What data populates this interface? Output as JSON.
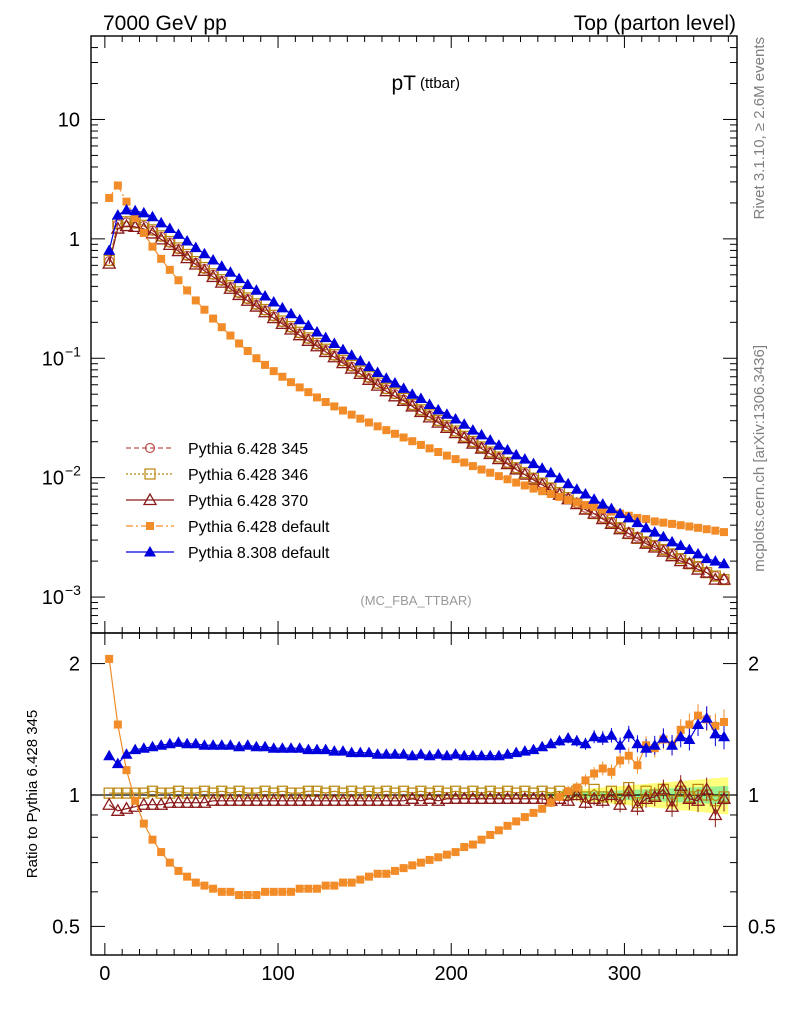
{
  "header": {
    "left": "7000 GeV pp",
    "right": "Top (parton level)"
  },
  "side_labels": {
    "rivet": "Rivet 3.1.10, ≥ 2.6M events",
    "mcplots": "mcplots.cern.ch [arXiv:1306.3436]"
  },
  "chart_data": [
    {
      "type": "line",
      "title": "pT",
      "title_suffix": "(ttbar)",
      "analysis_tag": "(MC_FBA_TTBAR)",
      "y_scale": "log",
      "xlim": [
        -8,
        365
      ],
      "ylim": [
        0.0005,
        50
      ],
      "y_ticks": [
        {
          "value": 10,
          "label": "10",
          "exp": ""
        },
        {
          "value": 1,
          "label": "1",
          "exp": ""
        },
        {
          "value": 0.1,
          "label": "10",
          "exp": "−1"
        },
        {
          "value": 0.01,
          "label": "10",
          "exp": "−2"
        },
        {
          "value": 0.001,
          "label": "10",
          "exp": "−3"
        }
      ],
      "legend_position": "lower-left",
      "x": [
        2.5,
        7.5,
        12.5,
        17.5,
        22.5,
        27.5,
        32.5,
        37.5,
        42.5,
        47.5,
        52.5,
        57.5,
        62.5,
        67.5,
        72.5,
        77.5,
        82.5,
        87.5,
        92.5,
        97.5,
        102.5,
        107.5,
        112.5,
        117.5,
        122.5,
        127.5,
        132.5,
        137.5,
        142.5,
        147.5,
        152.5,
        157.5,
        162.5,
        167.5,
        172.5,
        177.5,
        182.5,
        187.5,
        192.5,
        197.5,
        202.5,
        207.5,
        212.5,
        217.5,
        222.5,
        227.5,
        232.5,
        237.5,
        242.5,
        247.5,
        252.5,
        257.5,
        262.5,
        267.5,
        272.5,
        277.5,
        282.5,
        287.5,
        292.5,
        297.5,
        302.5,
        307.5,
        312.5,
        317.5,
        322.5,
        327.5,
        332.5,
        337.5,
        342.5,
        347.5,
        352.5,
        357.5
      ],
      "series": [
        {
          "name": "Pythia 6.428 345",
          "color": "#c0504d",
          "marker": "open-circle",
          "line": "dashed",
          "values": [
            0.65,
            1.32,
            1.37,
            1.34,
            1.28,
            1.17,
            1.04,
            0.93,
            0.82,
            0.72,
            0.63,
            0.56,
            0.5,
            0.445,
            0.395,
            0.35,
            0.313,
            0.28,
            0.251,
            0.224,
            0.2,
            0.18,
            0.161,
            0.145,
            0.13,
            0.117,
            0.105,
            0.094,
            0.085,
            0.076,
            0.068,
            0.061,
            0.055,
            0.05,
            0.045,
            0.0405,
            0.0365,
            0.033,
            0.0297,
            0.0268,
            0.0242,
            0.0219,
            0.0198,
            0.0179,
            0.0162,
            0.0147,
            0.0133,
            0.012,
            0.0109,
            0.0099,
            0.009,
            0.0082,
            0.0074,
            0.0067,
            0.0061,
            0.0056,
            0.0051,
            0.0046,
            0.0042,
            0.0038,
            0.0035,
            0.0032,
            0.0029,
            0.0027,
            0.0025,
            0.0023,
            0.0021,
            0.0019,
            0.0018,
            0.0016,
            0.0015,
            0.0014
          ]
        },
        {
          "name": "Pythia 6.428 346",
          "color": "#b8860b",
          "marker": "open-square",
          "line": "dotted",
          "values": [
            0.66,
            1.34,
            1.39,
            1.36,
            1.3,
            1.19,
            1.06,
            0.95,
            0.84,
            0.74,
            0.645,
            0.575,
            0.51,
            0.455,
            0.405,
            0.36,
            0.32,
            0.286,
            0.256,
            0.229,
            0.205,
            0.184,
            0.165,
            0.148,
            0.133,
            0.119,
            0.107,
            0.096,
            0.087,
            0.078,
            0.07,
            0.062,
            0.056,
            0.051,
            0.046,
            0.041,
            0.037,
            0.0336,
            0.0302,
            0.0272,
            0.0246,
            0.0222,
            0.0201,
            0.0181,
            0.0164,
            0.0149,
            0.0134,
            0.0121,
            0.011,
            0.0099,
            0.009,
            0.0082,
            0.0075,
            0.0068,
            0.0061,
            0.0055,
            0.005,
            0.0046,
            0.0042,
            0.0038,
            0.0034,
            0.0031,
            0.0029,
            0.0027,
            0.0025,
            0.0023,
            0.0021,
            0.0019,
            0.0018,
            0.0016,
            0.0015,
            0.0014
          ]
        },
        {
          "name": "Pythia 6.428 370",
          "color": "#8b1a1a",
          "marker": "open-triangle",
          "line": "solid",
          "values": [
            0.62,
            1.22,
            1.28,
            1.26,
            1.21,
            1.11,
            0.99,
            0.89,
            0.79,
            0.69,
            0.61,
            0.54,
            0.48,
            0.43,
            0.382,
            0.339,
            0.303,
            0.271,
            0.243,
            0.217,
            0.194,
            0.174,
            0.156,
            0.14,
            0.126,
            0.113,
            0.102,
            0.091,
            0.082,
            0.074,
            0.066,
            0.059,
            0.053,
            0.048,
            0.044,
            0.0395,
            0.0355,
            0.032,
            0.0289,
            0.0261,
            0.0236,
            0.0214,
            0.0193,
            0.0175,
            0.0158,
            0.0143,
            0.013,
            0.0117,
            0.0106,
            0.0096,
            0.0087,
            0.0079,
            0.0072,
            0.0066,
            0.006,
            0.0054,
            0.005,
            0.0045,
            0.0041,
            0.0037,
            0.0034,
            0.0031,
            0.0028,
            0.0026,
            0.0024,
            0.0022,
            0.002,
            0.0019,
            0.0017,
            0.0016,
            0.0014,
            0.0014
          ]
        },
        {
          "name": "Pythia 6.428 default",
          "color": "#f28c28",
          "marker": "filled-square",
          "line": "dashdot",
          "values": [
            2.2,
            2.8,
            2.05,
            1.5,
            1.12,
            0.86,
            0.68,
            0.55,
            0.45,
            0.37,
            0.305,
            0.255,
            0.215,
            0.182,
            0.155,
            0.133,
            0.115,
            0.1,
            0.088,
            0.078,
            0.07,
            0.063,
            0.057,
            0.052,
            0.047,
            0.043,
            0.0395,
            0.0365,
            0.0337,
            0.0312,
            0.029,
            0.0269,
            0.025,
            0.0233,
            0.0217,
            0.0202,
            0.0188,
            0.0176,
            0.0164,
            0.0153,
            0.0143,
            0.0134,
            0.0125,
            0.0117,
            0.011,
            0.0103,
            0.0097,
            0.0091,
            0.0086,
            0.0081,
            0.0077,
            0.0073,
            0.0069,
            0.0065,
            0.0062,
            0.0059,
            0.0057,
            0.0054,
            0.0052,
            0.005,
            0.0048,
            0.0046,
            0.0045,
            0.0043,
            0.0042,
            0.0041,
            0.004,
            0.0039,
            0.0038,
            0.0037,
            0.0036,
            0.0035
          ]
        },
        {
          "name": "Pythia 8.308 default",
          "color": "#0000dd",
          "marker": "filled-triangle",
          "line": "solid",
          "values": [
            0.8,
            1.58,
            1.75,
            1.72,
            1.65,
            1.53,
            1.36,
            1.22,
            1.09,
            0.96,
            0.845,
            0.75,
            0.665,
            0.59,
            0.525,
            0.465,
            0.415,
            0.371,
            0.332,
            0.296,
            0.264,
            0.236,
            0.21,
            0.188,
            0.166,
            0.149,
            0.133,
            0.118,
            0.106,
            0.095,
            0.085,
            0.076,
            0.068,
            0.062,
            0.056,
            0.05,
            0.046,
            0.041,
            0.037,
            0.034,
            0.031,
            0.028,
            0.025,
            0.0228,
            0.0206,
            0.0187,
            0.0171,
            0.0155,
            0.0143,
            0.0131,
            0.012,
            0.011,
            0.0099,
            0.0089,
            0.008,
            0.0073,
            0.0066,
            0.006,
            0.0055,
            0.005,
            0.0046,
            0.0042,
            0.0038,
            0.0035,
            0.0032,
            0.0029,
            0.0027,
            0.0025,
            0.0023,
            0.0021,
            0.002,
            0.0019
          ]
        }
      ]
    },
    {
      "type": "line",
      "ylabel": "Ratio to Pythia 6.428 345",
      "y_scale": "log",
      "xlim": [
        -8,
        365
      ],
      "ylim": [
        0.43,
        2.35
      ],
      "y_ticks": [
        {
          "value": 2,
          "label": "2"
        },
        {
          "value": 1,
          "label": "1"
        },
        {
          "value": 0.5,
          "label": "0.5"
        }
      ],
      "x_ticks": [
        0,
        100,
        200,
        300
      ],
      "x_tick_labels": [
        "0",
        "100",
        "200",
        "300"
      ],
      "band": {
        "start_x": 255,
        "inner_color": "#90ee90",
        "outer_color": "#ffff66"
      },
      "series": [
        {
          "name": "Pythia 6.428 346",
          "color": "#b8860b",
          "marker": "open-square",
          "values": [
            1.01,
            1.01,
            1.01,
            1.01,
            1.01,
            1.02,
            1.01,
            1.01,
            1.02,
            1.01,
            1.01,
            1.02,
            1.01,
            1.02,
            1.01,
            1.02,
            1.01,
            1.01,
            1.02,
            1.01,
            1.02,
            1.01,
            1.01,
            1.02,
            1.02,
            1.01,
            1.02,
            1.01,
            1.02,
            1.01,
            1.02,
            1.01,
            1.02,
            1.01,
            1.02,
            1.01,
            1.02,
            1.01,
            1.02,
            1.01,
            1.02,
            1.01,
            1.02,
            1.01,
            1.02,
            1.01,
            1.02,
            1.01,
            1.02,
            1.01,
            1.02,
            1.01,
            1.02,
            1.0,
            1.02,
            0.99,
            1.03,
            0.99,
            1.02,
            0.98,
            1.04,
            0.96,
            1.02,
            1.0,
            1.03,
            0.97,
            1.02,
            0.99,
            1.03,
            1.0,
            0.97,
            0.99
          ]
        },
        {
          "name": "Pythia 6.428 370",
          "color": "#8b1a1a",
          "marker": "open-triangle",
          "values": [
            0.95,
            0.92,
            0.93,
            0.94,
            0.95,
            0.95,
            0.95,
            0.96,
            0.96,
            0.96,
            0.96,
            0.96,
            0.97,
            0.97,
            0.97,
            0.97,
            0.97,
            0.97,
            0.97,
            0.97,
            0.97,
            0.97,
            0.97,
            0.97,
            0.97,
            0.97,
            0.97,
            0.97,
            0.97,
            0.97,
            0.97,
            0.97,
            0.97,
            0.97,
            0.97,
            0.98,
            0.97,
            0.98,
            0.97,
            0.98,
            0.98,
            0.98,
            0.98,
            0.98,
            0.98,
            0.98,
            0.98,
            0.98,
            0.98,
            0.98,
            0.98,
            0.97,
            0.98,
            0.97,
            1.0,
            0.96,
            0.98,
            0.97,
            1.0,
            0.95,
            1.02,
            0.94,
            0.98,
            0.99,
            1.03,
            0.94,
            1.05,
            0.98,
            0.97,
            1.03,
            0.9,
            0.98
          ]
        },
        {
          "name": "Pythia 6.428 default",
          "color": "#f28c28",
          "marker": "filled-square",
          "values": [
            2.05,
            1.45,
            1.14,
            0.97,
            0.86,
            0.79,
            0.74,
            0.7,
            0.67,
            0.65,
            0.63,
            0.62,
            0.61,
            0.6,
            0.6,
            0.59,
            0.59,
            0.59,
            0.6,
            0.6,
            0.6,
            0.6,
            0.61,
            0.61,
            0.61,
            0.62,
            0.62,
            0.63,
            0.63,
            0.64,
            0.65,
            0.66,
            0.66,
            0.67,
            0.68,
            0.69,
            0.7,
            0.71,
            0.72,
            0.73,
            0.74,
            0.76,
            0.77,
            0.79,
            0.81,
            0.83,
            0.85,
            0.87,
            0.89,
            0.91,
            0.93,
            0.96,
            0.99,
            1.02,
            1.04,
            1.08,
            1.12,
            1.15,
            1.13,
            1.2,
            1.23,
            1.17,
            1.3,
            1.28,
            1.34,
            1.3,
            1.41,
            1.45,
            1.52,
            1.49,
            1.44,
            1.47
          ]
        },
        {
          "name": "Pythia 8.308 default",
          "color": "#0000dd",
          "marker": "filled-triangle",
          "values": [
            1.23,
            1.18,
            1.24,
            1.27,
            1.28,
            1.29,
            1.3,
            1.31,
            1.32,
            1.31,
            1.31,
            1.3,
            1.3,
            1.3,
            1.3,
            1.29,
            1.3,
            1.29,
            1.29,
            1.28,
            1.28,
            1.28,
            1.28,
            1.27,
            1.27,
            1.27,
            1.26,
            1.26,
            1.25,
            1.25,
            1.25,
            1.24,
            1.24,
            1.24,
            1.24,
            1.23,
            1.24,
            1.23,
            1.24,
            1.23,
            1.24,
            1.23,
            1.23,
            1.23,
            1.23,
            1.23,
            1.24,
            1.25,
            1.26,
            1.27,
            1.29,
            1.31,
            1.33,
            1.35,
            1.33,
            1.31,
            1.36,
            1.35,
            1.37,
            1.3,
            1.38,
            1.31,
            1.28,
            1.3,
            1.35,
            1.3,
            1.36,
            1.34,
            1.45,
            1.5,
            1.38,
            1.36
          ]
        }
      ]
    }
  ]
}
